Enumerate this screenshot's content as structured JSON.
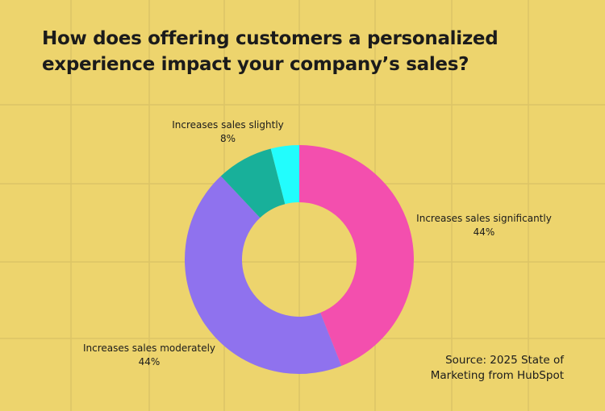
{
  "chart_data": {
    "type": "pie",
    "variant": "donut",
    "title": "How does offering customers a personalized experience impact your company’s sales?",
    "slices": [
      {
        "label": "Increases sales significantly",
        "value": 44,
        "value_label": "44%",
        "color": "#f34fae"
      },
      {
        "label": "Increases sales moderately",
        "value": 44,
        "value_label": "44%",
        "color": "#8f72ee"
      },
      {
        "label": "Increases sales slightly",
        "value": 8,
        "value_label": "8%",
        "color": "#18b09a"
      },
      {
        "label": "",
        "value": 4,
        "value_label": "",
        "color": "#22fdfd"
      }
    ],
    "legend": "none",
    "source": "Source: 2025 State of Marketing from HubSpot",
    "background_color": "#edd46d"
  }
}
